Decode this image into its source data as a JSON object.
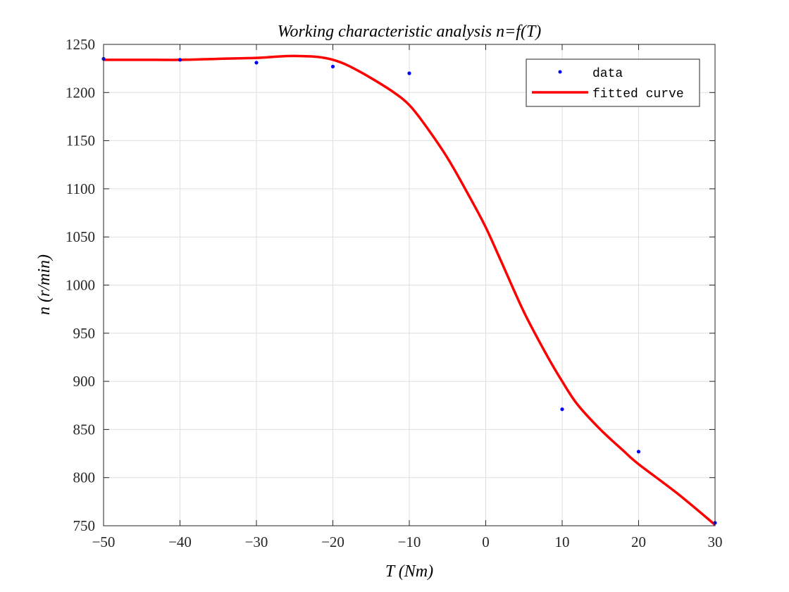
{
  "chart_data": {
    "type": "line",
    "title": "Working characteristic analysis n=f(T)",
    "xlabel": "T (Nm)",
    "ylabel": "n (r/min)",
    "xlim": [
      -50,
      30
    ],
    "ylim": [
      750,
      1250
    ],
    "xticks": [
      -50,
      -40,
      -30,
      -20,
      -10,
      0,
      10,
      20,
      30
    ],
    "xtick_labels": [
      "−50",
      "−40",
      "−30",
      "−20",
      "−10",
      "0",
      "10",
      "20",
      "30"
    ],
    "yticks": [
      750,
      800,
      850,
      900,
      950,
      1000,
      1050,
      1100,
      1150,
      1200,
      1250
    ],
    "ytick_labels": [
      "750",
      "800",
      "850",
      "900",
      "950",
      "1000",
      "1050",
      "1100",
      "1150",
      "1200",
      "1250"
    ],
    "grid": true,
    "legend_position": "top-right",
    "series": [
      {
        "name": "data",
        "kind": "scatter",
        "color": "#0000ff",
        "x": [
          -50,
          -40,
          -30,
          -20,
          -10,
          10,
          20,
          30
        ],
        "y": [
          1235,
          1234,
          1231,
          1227,
          1220,
          871,
          827,
          753
        ]
      },
      {
        "name": "fitted curve",
        "kind": "line",
        "color": "#ff0000",
        "x": [
          -50,
          -45,
          -40,
          -35,
          -30,
          -27,
          -25,
          -22,
          -20,
          -18,
          -15,
          -12,
          -10,
          -8,
          -5,
          -2,
          0,
          2,
          5,
          8,
          10,
          12,
          15,
          18,
          20,
          25,
          30
        ],
        "y": [
          1234,
          1234,
          1234,
          1235,
          1236,
          1237.5,
          1238,
          1237,
          1234,
          1228,
          1215,
          1200,
          1187,
          1167,
          1132,
          1090,
          1060,
          1025,
          972,
          927,
          900,
          876,
          850,
          828,
          814,
          784,
          751
        ]
      }
    ]
  }
}
